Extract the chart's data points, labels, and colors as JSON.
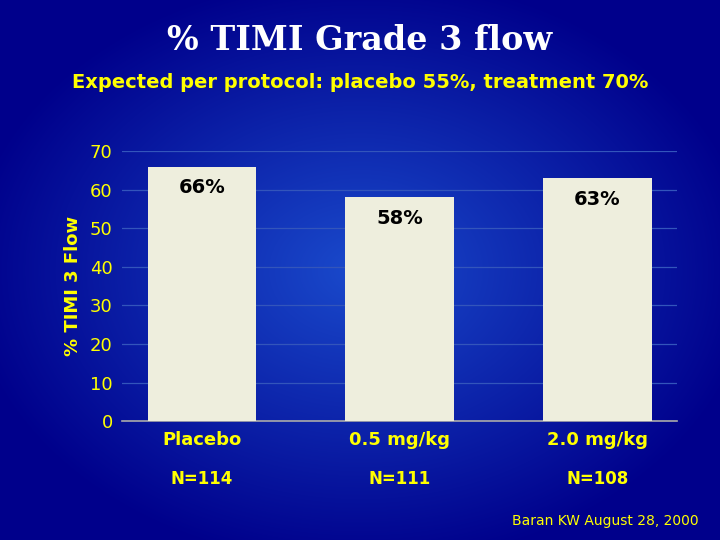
{
  "title": "% TIMI Grade 3 flow",
  "subtitle": "Expected per protocol: placebo 55%, treatment 70%",
  "categories": [
    "Placebo",
    "0.5 mg/kg",
    "2.0 mg/kg"
  ],
  "sample_sizes": [
    "N=114",
    "N=111",
    "N=108"
  ],
  "values": [
    66,
    58,
    63
  ],
  "bar_labels": [
    "66%",
    "58%",
    "63%"
  ],
  "ylabel": "% TIMI 3 Flow",
  "ylim": [
    0,
    70
  ],
  "yticks": [
    0,
    10,
    20,
    30,
    40,
    50,
    60,
    70
  ],
  "bar_color": "#eeeedd",
  "bg_center_color": "#1a4acc",
  "bg_edge_color": "#00008b",
  "title_color": "#ffffff",
  "subtitle_color": "#ffff00",
  "tick_label_color": "#ffff00",
  "ylabel_color": "#ffff00",
  "bar_label_color": "#000000",
  "n_label_color": "#ffff00",
  "grid_color": "#3355bb",
  "axis_line_color": "#aaaaaa",
  "footer_text": "Baran KW August 28, 2000",
  "footer_color": "#ffff00",
  "title_fontsize": 24,
  "subtitle_fontsize": 14,
  "tick_fontsize": 13,
  "ylabel_fontsize": 13,
  "bar_label_fontsize": 14,
  "n_label_fontsize": 12,
  "footer_fontsize": 10
}
